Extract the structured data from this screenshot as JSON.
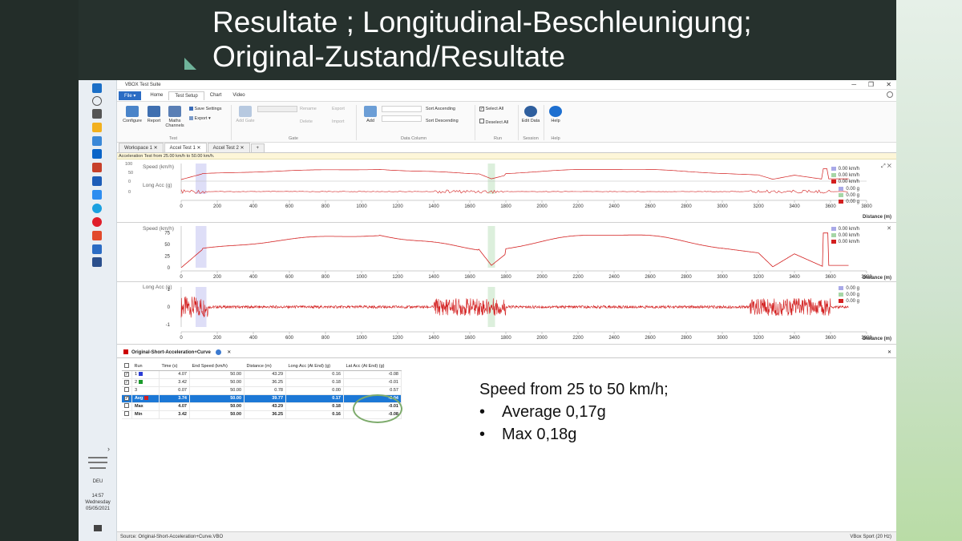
{
  "slide": {
    "title_line1": "Resultate ; Longitudinal-Beschleunigung;",
    "title_line2": "Original-Zustand/Resultate"
  },
  "notes": {
    "heading": "Speed from 25 to 50 km/h;",
    "bullets": [
      "Average 0,17g",
      "Max 0,18g"
    ],
    "bullet_char": "•"
  },
  "window": {
    "title": "VBOX Test Suite",
    "minimize": "─",
    "restore": "❐",
    "close": "✕"
  },
  "ribbon_tabs": [
    "File ▾",
    "Home",
    "Test Setup",
    "Chart",
    "Video"
  ],
  "ribbon": {
    "configure": "Configure",
    "report": "Report",
    "maths_channels": "Maths Channels",
    "save_settings": "Save Settings",
    "export": "Export ▾",
    "group_test": "Test",
    "add_gate": "Add Gate",
    "rename": "Rename",
    "delete": "Delete",
    "export2": "Export",
    "import": "Import",
    "group_gate": "Gate",
    "add": "Add",
    "sort_ascending": "Sort Ascending",
    "sort_descending": "Sort Descending",
    "group_data_column": "Data Column",
    "select_all": "Select All",
    "deselect_all": "Deselect All",
    "group_run": "Run",
    "edit_data": "Edit Data",
    "group_session": "Session",
    "help": "Help",
    "group_help": "Help"
  },
  "doc_tabs": [
    "Workspace 1",
    "Accel Test 1",
    "Accel Test 2",
    "+"
  ],
  "accel_info": "Acceleration Test from 25.00 km/h to 50.00 km/h.",
  "charts": {
    "x_ticks": [
      "0",
      "200",
      "400",
      "600",
      "800",
      "1000",
      "1200",
      "1400",
      "1600",
      "1800",
      "2000",
      "2200",
      "2400",
      "2600",
      "2800",
      "3000",
      "3200",
      "3400",
      "3600",
      "3800"
    ],
    "x_label": "Distance (m)",
    "overview": {
      "speed_label": "Speed (km/h)",
      "acc_label": "Long Acc (g)",
      "y_ticks_top": [
        "100",
        "50"
      ],
      "y_ticks_bottom": [
        "0",
        "0"
      ],
      "legend_speed": [
        "0.00 km/h",
        "0.00 km/h",
        "0.00 km/h"
      ],
      "legend_acc": [
        "0.00 g",
        "0.00 g",
        "0.00 g"
      ]
    },
    "speed": {
      "label": "Speed (km/h)",
      "y_ticks": [
        "75",
        "50",
        "25",
        "0"
      ],
      "legend": [
        "0.00 km/h",
        "0.00 km/h",
        "0.00 km/h"
      ]
    },
    "acc": {
      "label": "Long Acc (g)",
      "y_ticks": [
        "1",
        "0",
        "-1"
      ],
      "legend": [
        "0.00 g",
        "0.00 g",
        "0.00 g"
      ]
    },
    "legend_colors": [
      "#a9a9e8",
      "#a6d6a6",
      "#d32020"
    ]
  },
  "table": {
    "title": "Original-Short-Acceleration+Curve",
    "columns": [
      "Run",
      "Time (s)",
      "End Speed (km/h)",
      "Distance (m)",
      "Long Acc (At End) (g)",
      "Lat Acc (At End) (g)"
    ],
    "rows": [
      {
        "check": "✓",
        "run": "1",
        "color": "#2a3cd6",
        "time": "4.07",
        "end_speed": "50.00",
        "distance": "43.29",
        "long_acc": "0.16",
        "lat_acc": "-0.08"
      },
      {
        "check": "✓",
        "run": "2",
        "color": "#1a9a2a",
        "time": "3.42",
        "end_speed": "50.00",
        "distance": "36.25",
        "long_acc": "0.18",
        "lat_acc": "-0.01"
      },
      {
        "check": "",
        "run": "3",
        "color": "",
        "time": "0.07",
        "end_speed": "50.00",
        "distance": "0.78",
        "long_acc": "0.00",
        "lat_acc": "0.57"
      },
      {
        "check": "✓",
        "run": "Avg",
        "color": "#d32020",
        "time": "3.74",
        "end_speed": "50.00",
        "distance": "39.77",
        "long_acc": "0.17",
        "lat_acc": "-0.04"
      },
      {
        "check": "",
        "run": "Max",
        "color": "",
        "time": "4.07",
        "end_speed": "50.00",
        "distance": "43.29",
        "long_acc": "0.18",
        "lat_acc": "-0.01"
      },
      {
        "check": "",
        "run": "Min",
        "color": "",
        "time": "3.42",
        "end_speed": "50.00",
        "distance": "36.25",
        "long_acc": "0.16",
        "lat_acc": "-0.08"
      }
    ]
  },
  "status": {
    "source": "Source: Original-Short-Acceleration+Curve.VBO",
    "mode": "VBox Sport (20 Hz)"
  },
  "taskbar": {
    "lang": "DEU",
    "time": "14:57",
    "day": "Wednesday",
    "date": "05/05/2021",
    "chevron": "›"
  }
}
